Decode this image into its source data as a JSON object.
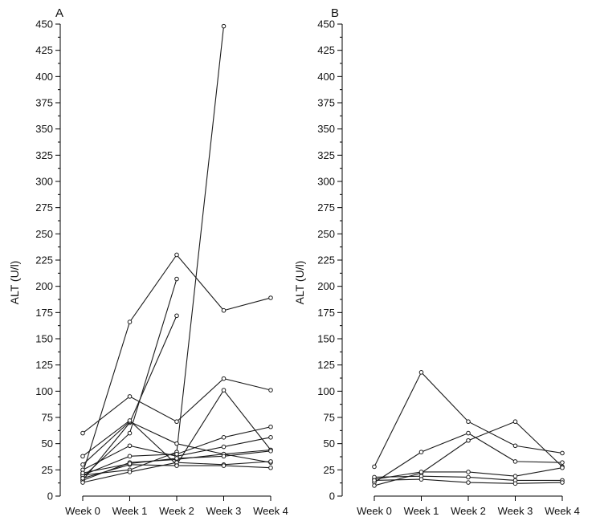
{
  "chart_data": [
    {
      "type": "line",
      "title": "A",
      "xlabel": "",
      "ylabel": "ALT (U/l)",
      "categories": [
        "Week 0",
        "Week 1",
        "Week 2",
        "Week 3",
        "Week 4"
      ],
      "ylim": [
        0,
        450
      ],
      "yticks": [
        0,
        25,
        50,
        75,
        100,
        125,
        150,
        175,
        200,
        225,
        250,
        275,
        300,
        325,
        350,
        375,
        400,
        425,
        450
      ],
      "grid": false,
      "legend": "none",
      "series": [
        {
          "values": [
            60,
            95,
            71,
            112,
            101
          ]
        },
        {
          "values": [
            22,
            166,
            230,
            177,
            189
          ]
        },
        {
          "values": [
            18,
            60,
            207,
            null,
            null
          ]
        },
        {
          "values": [
            15,
            70,
            172,
            null,
            null
          ]
        },
        {
          "values": [
            20,
            25,
            42,
            448,
            null
          ]
        },
        {
          "values": [
            30,
            71,
            50,
            40,
            32
          ]
        },
        {
          "values": [
            38,
            72,
            30,
            101,
            44
          ]
        },
        {
          "values": [
            25,
            48,
            38,
            47,
            56
          ]
        },
        {
          "values": [
            20,
            38,
            40,
            56,
            66
          ]
        },
        {
          "values": [
            15,
            32,
            35,
            40,
            44
          ]
        },
        {
          "values": [
            13,
            23,
            32,
            30,
            33
          ]
        },
        {
          "values": [
            17,
            30,
            29,
            29,
            27
          ]
        },
        {
          "values": [
            22,
            31,
            36,
            38,
            43
          ]
        }
      ]
    },
    {
      "type": "line",
      "title": "B",
      "xlabel": "",
      "ylabel": "ALT (U/l)",
      "categories": [
        "Week 0",
        "Week 1",
        "Week 2",
        "Week 3",
        "Week 4"
      ],
      "ylim": [
        0,
        450
      ],
      "yticks": [
        0,
        25,
        50,
        75,
        100,
        125,
        150,
        175,
        200,
        225,
        250,
        275,
        300,
        325,
        350,
        375,
        400,
        425,
        450
      ],
      "grid": false,
      "legend": "none",
      "series": [
        {
          "values": [
            28,
            118,
            71,
            48,
            41
          ]
        },
        {
          "values": [
            13,
            42,
            60,
            33,
            32
          ]
        },
        {
          "values": [
            10,
            22,
            53,
            71,
            28
          ]
        },
        {
          "values": [
            16,
            23,
            23,
            19,
            27
          ]
        },
        {
          "values": [
            18,
            19,
            18,
            15,
            15
          ]
        },
        {
          "values": [
            15,
            16,
            13,
            12,
            13
          ]
        }
      ]
    }
  ]
}
